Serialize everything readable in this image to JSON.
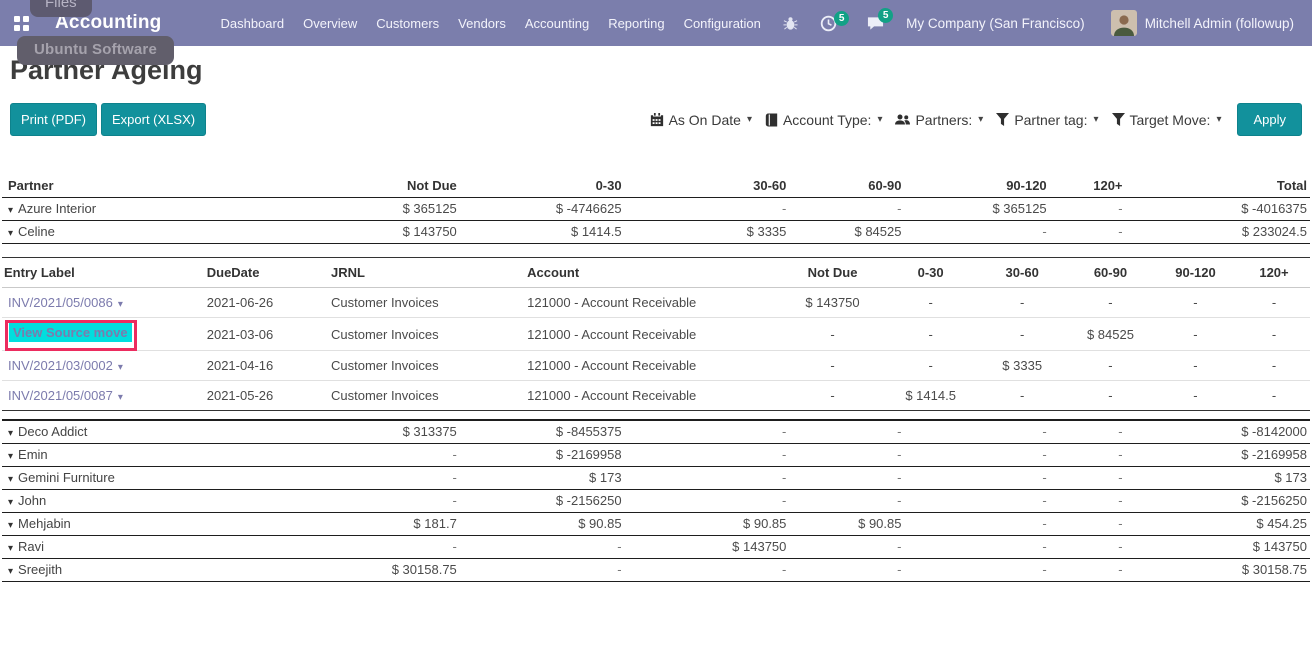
{
  "navbar": {
    "brand": "Accounting",
    "menus": [
      "Dashboard",
      "Overview",
      "Customers",
      "Vendors",
      "Accounting",
      "Reporting",
      "Configuration"
    ],
    "activity_count": "5",
    "message_count": "5",
    "company": "My Company (San Francisco)",
    "user": "Mitchell Admin (followup)"
  },
  "os_overlay": {
    "dock_tooltip_top": "Files",
    "dock_tooltip_bottom": "Ubuntu Software"
  },
  "page": {
    "title": "Partner Ageing"
  },
  "toolbar": {
    "print_label": "Print (PDF)",
    "export_label": "Export (XLSX)",
    "apply_label": "Apply"
  },
  "filters": [
    {
      "icon": "calendar-icon",
      "label": "As On Date"
    },
    {
      "icon": "book-icon",
      "label": "Account Type:"
    },
    {
      "icon": "users-icon",
      "label": "Partners:"
    },
    {
      "icon": "filter-icon",
      "label": "Partner tag:"
    },
    {
      "icon": "filter-icon",
      "label": "Target Move:"
    }
  ],
  "main_table": {
    "headers": [
      "Partner",
      "Not Due",
      "0-30",
      "30-60",
      "60-90",
      "90-120",
      "120+",
      "Total"
    ],
    "rows_before_detail": [
      {
        "partner": "Azure Interior",
        "values": [
          "$ 365125",
          "$ -4746625",
          "-",
          "-",
          "$ 365125",
          "-",
          "$ -4016375"
        ]
      },
      {
        "partner": "Celine",
        "values": [
          "$ 143750",
          "$ 1414.5",
          "$ 3335",
          "$ 84525",
          "-",
          "-",
          "$ 233024.5"
        ]
      }
    ],
    "rows_after_detail": [
      {
        "partner": "Deco Addict",
        "values": [
          "$ 313375",
          "$ -8455375",
          "-",
          "-",
          "-",
          "-",
          "$ -8142000"
        ]
      },
      {
        "partner": "Emin",
        "values": [
          "-",
          "$ -2169958",
          "-",
          "-",
          "-",
          "-",
          "$ -2169958"
        ]
      },
      {
        "partner": "Gemini Furniture",
        "values": [
          "-",
          "$ 173",
          "-",
          "-",
          "-",
          "-",
          "$ 173"
        ]
      },
      {
        "partner": "John",
        "values": [
          "-",
          "$ -2156250",
          "-",
          "-",
          "-",
          "-",
          "$ -2156250"
        ]
      },
      {
        "partner": "Mehjabin",
        "values": [
          "$ 181.7",
          "$ 90.85",
          "$ 90.85",
          "$ 90.85",
          "-",
          "-",
          "$ 454.25"
        ]
      },
      {
        "partner": "Ravi",
        "values": [
          "-",
          "-",
          "$ 143750",
          "-",
          "-",
          "-",
          "$ 143750"
        ]
      },
      {
        "partner": "Sreejith",
        "values": [
          "$ 30158.75",
          "-",
          "-",
          "-",
          "-",
          "-",
          "$ 30158.75"
        ]
      }
    ]
  },
  "detail_table": {
    "headers": [
      "Entry Label",
      "DueDate",
      "JRNL",
      "Account",
      "Not Due",
      "0-30",
      "30-60",
      "60-90",
      "90-120",
      "120+"
    ],
    "rows": [
      {
        "label": "INV/2021/05/0086",
        "type": "link",
        "due": "2021-06-26",
        "jrnl": "Customer Invoices",
        "account": "121000 - Account Receivable",
        "values": [
          "$ 143750",
          "-",
          "-",
          "-",
          "-",
          "-"
        ]
      },
      {
        "label": "View Source move",
        "type": "menu",
        "due": "2021-03-06",
        "jrnl": "Customer Invoices",
        "account": "121000 - Account Receivable",
        "values": [
          "-",
          "-",
          "-",
          "$ 84525",
          "-",
          "-"
        ]
      },
      {
        "label": "INV/2021/03/0002",
        "type": "link",
        "due": "2021-04-16",
        "jrnl": "Customer Invoices",
        "account": "121000 - Account Receivable",
        "values": [
          "-",
          "-",
          "$ 3335",
          "-",
          "-",
          "-"
        ]
      },
      {
        "label": "INV/2021/05/0087",
        "type": "link",
        "due": "2021-05-26",
        "jrnl": "Customer Invoices",
        "account": "121000 - Account Receivable",
        "values": [
          "-",
          "$ 1414.5",
          "-",
          "-",
          "-",
          "-"
        ]
      }
    ]
  },
  "colors": {
    "navbar_purple": "#7b7eac",
    "accent_teal": "#12919c",
    "badge_teal": "#12a186",
    "link_purple": "#7c7bad",
    "highlight_cyan": "#00dede",
    "annotation_red": "#ec2c5f"
  }
}
